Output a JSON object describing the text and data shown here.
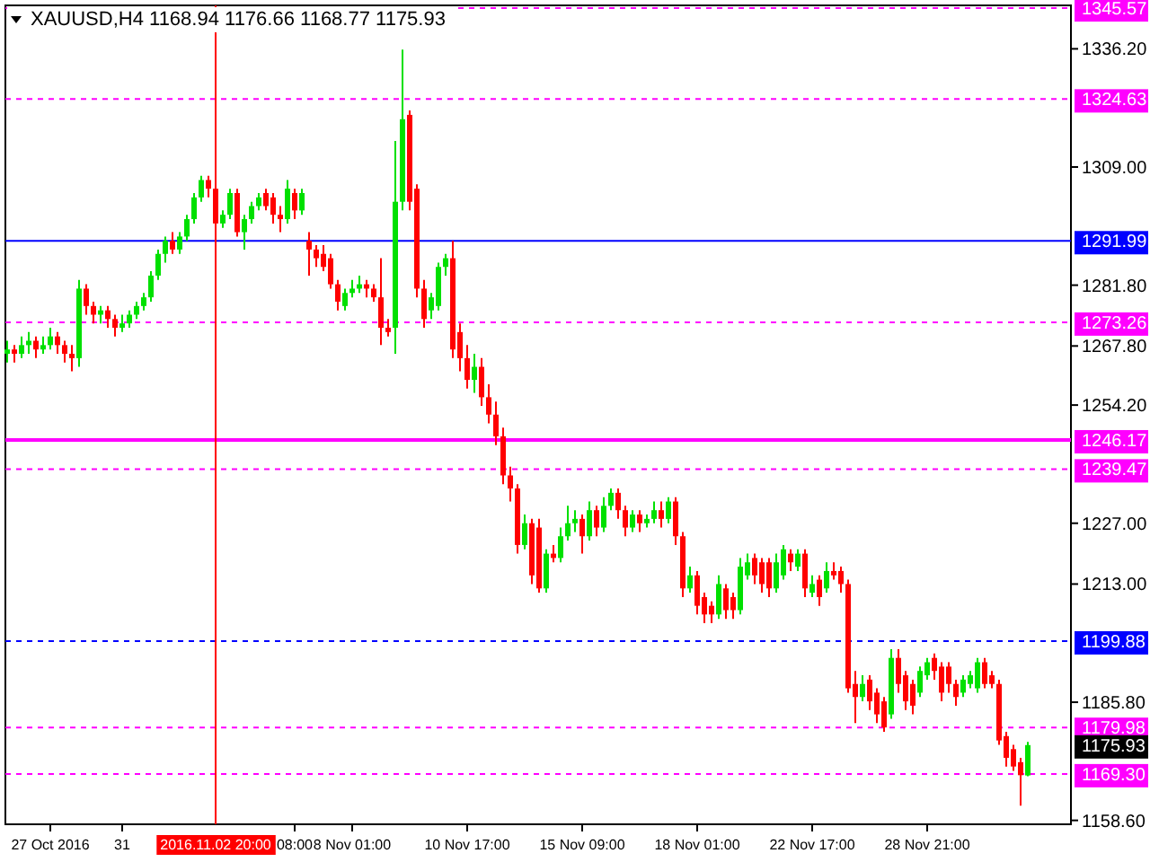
{
  "chart_data": {
    "type": "candlestick",
    "title": "XAUUSD,H4  1168.94 1176.66 1168.77 1175.93",
    "categories": [
      null,
      null,
      null,
      null,
      null,
      null,
      "27 Oct 2016",
      null,
      null,
      null,
      null,
      null,
      null,
      null,
      null,
      null,
      "31",
      null,
      null,
      null,
      null,
      null,
      null,
      null,
      null,
      null,
      null,
      null,
      null,
      "2016.11.02 20:00",
      null,
      null,
      null,
      null,
      null,
      null,
      null,
      null,
      null,
      null,
      "08:00",
      null,
      null,
      null,
      null,
      null,
      null,
      null,
      "8 Nov 01:00",
      null,
      null,
      null,
      null,
      null,
      null,
      null,
      null,
      null,
      null,
      null,
      null,
      null,
      null,
      null,
      "10 Nov 17:00",
      null,
      null,
      null,
      null,
      null,
      null,
      null,
      null,
      null,
      null,
      null,
      null,
      null,
      null,
      null,
      "15 Nov 09:00",
      null,
      null,
      null,
      null,
      null,
      null,
      null,
      null,
      null,
      null,
      null,
      null,
      null,
      null,
      null,
      "18 Nov 01:00",
      null,
      null,
      null,
      null,
      null,
      null,
      null,
      null,
      null,
      null,
      null,
      null,
      null,
      null,
      null,
      "22 Nov 17:00",
      null,
      null,
      null,
      null,
      null,
      null,
      null,
      null,
      null,
      null,
      null,
      null,
      null,
      null,
      null,
      "28 Nov 21:00",
      null,
      null,
      null,
      null,
      null,
      null,
      null,
      null,
      null,
      null,
      null,
      null,
      null,
      null
    ],
    "ohlc": [
      [
        1266,
        1269,
        1264,
        1267
      ],
      [
        1267,
        1268,
        1264,
        1266
      ],
      [
        1266,
        1270,
        1265,
        1268
      ],
      [
        1268,
        1271,
        1266,
        1269
      ],
      [
        1269,
        1270,
        1265,
        1267
      ],
      [
        1267,
        1270,
        1266,
        1268
      ],
      [
        1268,
        1272,
        1267,
        1270
      ],
      [
        1270,
        1271,
        1266,
        1268
      ],
      [
        1268,
        1269,
        1264,
        1266
      ],
      [
        1266,
        1268,
        1262,
        1265
      ],
      [
        1265,
        1283,
        1263,
        1281
      ],
      [
        1281,
        1282,
        1275,
        1277
      ],
      [
        1277,
        1278,
        1273,
        1275
      ],
      [
        1275,
        1277,
        1273,
        1276
      ],
      [
        1276,
        1277,
        1272,
        1274
      ],
      [
        1274,
        1275,
        1270,
        1272
      ],
      [
        1272,
        1275,
        1271,
        1273
      ],
      [
        1273,
        1276,
        1272,
        1275
      ],
      [
        1275,
        1278,
        1274,
        1277
      ],
      [
        1277,
        1280,
        1276,
        1279
      ],
      [
        1279,
        1285,
        1278,
        1284
      ],
      [
        1284,
        1290,
        1283,
        1289
      ],
      [
        1289,
        1293,
        1287,
        1292
      ],
      [
        1292,
        1294,
        1289,
        1290
      ],
      [
        1290,
        1294,
        1289,
        1293
      ],
      [
        1293,
        1298,
        1292,
        1297
      ],
      [
        1297,
        1303,
        1296,
        1302
      ],
      [
        1302,
        1307,
        1301,
        1306
      ],
      [
        1306,
        1307,
        1302,
        1304
      ],
      [
        1304,
        1305,
        1294,
        1296
      ],
      [
        1296,
        1299,
        1295,
        1298
      ],
      [
        1298,
        1304,
        1297,
        1303
      ],
      [
        1303,
        1304,
        1293,
        1294
      ],
      [
        1294,
        1298,
        1290,
        1297
      ],
      [
        1297,
        1301,
        1296,
        1300
      ],
      [
        1300,
        1303,
        1299,
        1302
      ],
      [
        1303,
        1304,
        1299,
        1300
      ],
      [
        1302,
        1303,
        1296,
        1298
      ],
      [
        1298,
        1300,
        1294,
        1297
      ],
      [
        1297,
        1306,
        1296,
        1304
      ],
      [
        1303,
        1304,
        1297,
        1299
      ],
      [
        1299,
        1304,
        1298,
        1303
      ],
      [
        1292,
        1294,
        1284,
        1290
      ],
      [
        1290,
        1291,
        1286,
        1288
      ],
      [
        1289,
        1291,
        1285,
        1286
      ],
      [
        1288,
        1289,
        1281,
        1282
      ],
      [
        1282,
        1283,
        1276,
        1278
      ],
      [
        1277,
        1281,
        1276,
        1280
      ],
      [
        1280,
        1283,
        1279,
        1281
      ],
      [
        1281,
        1284,
        1280,
        1282
      ],
      [
        1282,
        1283,
        1279,
        1281
      ],
      [
        1281,
        1282,
        1278,
        1279
      ],
      [
        1279,
        1288,
        1268,
        1272
      ],
      [
        1272,
        1274,
        1270,
        1271
      ],
      [
        1272,
        1315,
        1266,
        1301
      ],
      [
        1301,
        1336,
        1299,
        1320
      ],
      [
        1321,
        1322,
        1299,
        1301
      ],
      [
        1304,
        1305,
        1279,
        1281
      ],
      [
        1281,
        1283,
        1272,
        1274
      ],
      [
        1276,
        1280,
        1274,
        1279
      ],
      [
        1277,
        1287,
        1276,
        1286
      ],
      [
        1286,
        1289,
        1284,
        1288
      ],
      [
        1288,
        1292,
        1265,
        1267
      ],
      [
        1271,
        1273,
        1262,
        1265
      ],
      [
        1265,
        1268,
        1258,
        1260
      ],
      [
        1260,
        1266,
        1257,
        1263
      ],
      [
        1263,
        1265,
        1254,
        1256
      ],
      [
        1256,
        1259,
        1250,
        1252
      ],
      [
        1252,
        1255,
        1245,
        1247
      ],
      [
        1247,
        1249,
        1236,
        1238
      ],
      [
        1238,
        1240,
        1232,
        1235
      ],
      [
        1235,
        1236,
        1220,
        1222
      ],
      [
        1222,
        1229,
        1221,
        1227
      ],
      [
        1227,
        1228,
        1213,
        1215
      ],
      [
        1226,
        1228,
        1211,
        1212
      ],
      [
        1212,
        1221,
        1211,
        1220
      ],
      [
        1220,
        1222,
        1218,
        1219
      ],
      [
        1219,
        1226,
        1218,
        1224
      ],
      [
        1224,
        1231,
        1223,
        1227
      ],
      [
        1227,
        1230,
        1225,
        1228
      ],
      [
        1228,
        1229,
        1220,
        1224
      ],
      [
        1224,
        1232,
        1223,
        1230
      ],
      [
        1230,
        1231,
        1224,
        1226
      ],
      [
        1226,
        1233,
        1225,
        1231
      ],
      [
        1231,
        1235,
        1230,
        1234
      ],
      [
        1234,
        1235,
        1228,
        1230
      ],
      [
        1230,
        1231,
        1224,
        1226
      ],
      [
        1226,
        1230,
        1225,
        1229
      ],
      [
        1229,
        1230,
        1225,
        1227
      ],
      [
        1227,
        1229,
        1226,
        1228
      ],
      [
        1228,
        1232,
        1227,
        1230
      ],
      [
        1230,
        1232,
        1226,
        1228
      ],
      [
        1228,
        1233,
        1227,
        1232
      ],
      [
        1232,
        1233,
        1222,
        1224
      ],
      [
        1224,
        1225,
        1210,
        1212
      ],
      [
        1212,
        1217,
        1211,
        1215
      ],
      [
        1215,
        1216,
        1206,
        1208
      ],
      [
        1210,
        1211,
        1204,
        1206
      ],
      [
        1208,
        1209,
        1204,
        1206
      ],
      [
        1206,
        1215,
        1205,
        1213
      ],
      [
        1212,
        1213,
        1205,
        1207
      ],
      [
        1210,
        1211,
        1205,
        1207
      ],
      [
        1207,
        1219,
        1206,
        1217
      ],
      [
        1215,
        1220,
        1214,
        1218
      ],
      [
        1219,
        1220,
        1213,
        1215
      ],
      [
        1218,
        1219,
        1211,
        1213
      ],
      [
        1218,
        1219,
        1210,
        1212
      ],
      [
        1212,
        1220,
        1211,
        1218
      ],
      [
        1215,
        1222,
        1214,
        1221
      ],
      [
        1220,
        1221,
        1216,
        1218
      ],
      [
        1217,
        1221,
        1216,
        1220
      ],
      [
        1220,
        1221,
        1210,
        1212
      ],
      [
        1211,
        1215,
        1210,
        1213
      ],
      [
        1214,
        1215,
        1208,
        1210
      ],
      [
        1212,
        1218,
        1211,
        1216
      ],
      [
        1216,
        1218,
        1214,
        1215
      ],
      [
        1216,
        1217,
        1211,
        1213
      ],
      [
        1213,
        1214,
        1188,
        1189
      ],
      [
        1190,
        1193,
        1181,
        1187
      ],
      [
        1187,
        1192,
        1186,
        1190
      ],
      [
        1191,
        1192,
        1184,
        1186
      ],
      [
        1188,
        1189,
        1181,
        1183
      ],
      [
        1186,
        1187,
        1179,
        1180
      ],
      [
        1183,
        1198,
        1182,
        1196
      ],
      [
        1196,
        1198,
        1188,
        1190
      ],
      [
        1192,
        1193,
        1184,
        1186
      ],
      [
        1190,
        1191,
        1183,
        1185
      ],
      [
        1188,
        1194,
        1187,
        1193
      ],
      [
        1192,
        1196,
        1191,
        1195
      ],
      [
        1196,
        1197,
        1191,
        1193
      ],
      [
        1194,
        1195,
        1186,
        1188
      ],
      [
        1194,
        1195,
        1188,
        1190
      ],
      [
        1190,
        1191,
        1185,
        1187
      ],
      [
        1188,
        1192,
        1187,
        1191
      ],
      [
        1190,
        1193,
        1189,
        1192
      ],
      [
        1189,
        1196,
        1188,
        1195
      ],
      [
        1195,
        1196,
        1189,
        1190
      ],
      [
        1192,
        1193,
        1189,
        1190
      ],
      [
        1190,
        1191,
        1176,
        1177
      ],
      [
        1178,
        1179,
        1171,
        1173
      ],
      [
        1175,
        1176,
        1170,
        1171
      ],
      [
        1172,
        1173,
        1162,
        1169
      ],
      [
        1168.94,
        1176.66,
        1168.77,
        1175.93
      ]
    ],
    "ylim": [
      1157.7,
      1346.2
    ],
    "yticks": [
      {
        "value": 1158.6,
        "label": "1158.60"
      },
      {
        "value": 1185.8,
        "label": "1185.80"
      },
      {
        "value": 1213.0,
        "label": "1213.00"
      },
      {
        "value": 1227.0,
        "label": "1227.00"
      },
      {
        "value": 1254.2,
        "label": "1254.20"
      },
      {
        "value": 1267.8,
        "label": "1267.80"
      },
      {
        "value": 1281.8,
        "label": "1281.80"
      },
      {
        "value": 1309.0,
        "label": "1309.00"
      },
      {
        "value": 1336.2,
        "label": "1336.20"
      }
    ],
    "annotations": [
      "1175.93"
    ],
    "ref_lines": [
      {
        "axis": "y",
        "value": 1345.57,
        "label": "1345.57",
        "color": "#ff00ff",
        "line_style": "dashed"
      },
      {
        "axis": "y",
        "value": 1324.63,
        "label": "1324.63",
        "color": "#ff00ff",
        "line_style": "dashed"
      },
      {
        "axis": "y",
        "value": 1291.99,
        "label": "1291.99",
        "color": "#0000ff",
        "line_style": "solid"
      },
      {
        "axis": "y",
        "value": 1273.26,
        "label": "1273.26",
        "color": "#ff00ff",
        "line_style": "dashed"
      },
      {
        "axis": "y",
        "value": 1246.17,
        "label": "1246.17",
        "color": "#ff00ff",
        "line_style": "solid"
      },
      {
        "axis": "y",
        "value": 1239.47,
        "label": "1239.47",
        "color": "#ff00ff",
        "line_style": "dashed"
      },
      {
        "axis": "y",
        "value": 1199.88,
        "label": "1199.88",
        "color": "#0000ff",
        "line_style": "dashed"
      },
      {
        "axis": "y",
        "value": 1179.98,
        "label": "1179.98",
        "color": "#ff00ff",
        "line_style": "dashed"
      },
      {
        "axis": "y",
        "value": 1169.3,
        "label": "1169.30",
        "color": "#ff00ff",
        "line_style": "dashed"
      },
      {
        "axis": "x",
        "value": "2016.11.02 20:00",
        "color": "#ff0000",
        "line_style": "solid"
      }
    ]
  }
}
